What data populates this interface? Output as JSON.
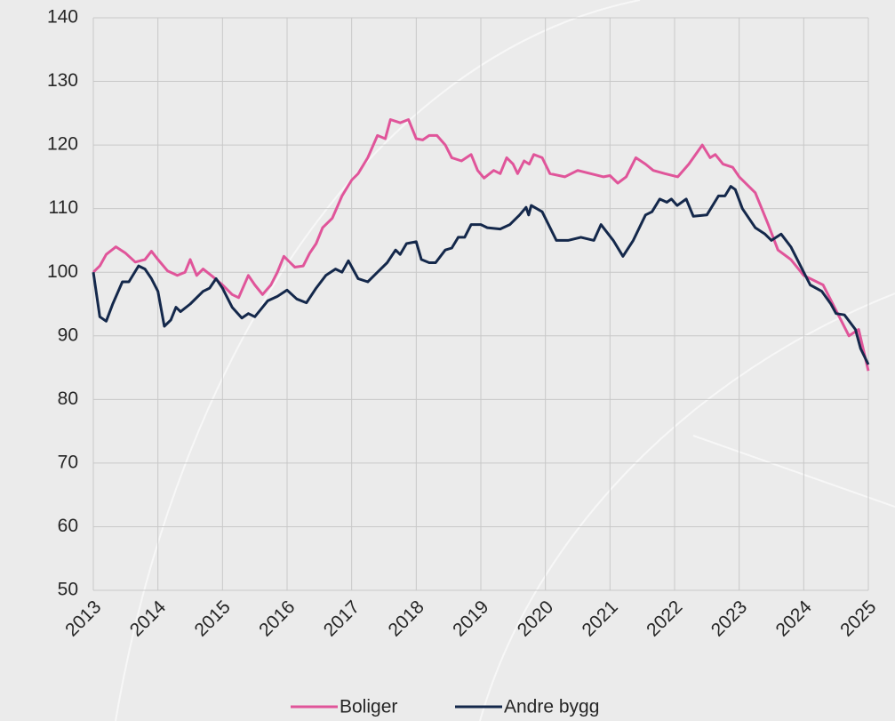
{
  "chart_data": {
    "type": "line",
    "xlim": [
      2013,
      2025
    ],
    "xticks": [
      2013,
      2014,
      2015,
      2016,
      2017,
      2018,
      2019,
      2020,
      2021,
      2022,
      2023,
      2024,
      2025
    ],
    "ylim": [
      50,
      140
    ],
    "yticks": [
      50,
      60,
      70,
      80,
      90,
      100,
      110,
      120,
      130,
      140
    ],
    "grid": true,
    "legend": "bottom",
    "series": [
      {
        "name": "Boliger",
        "color": "#e0559a",
        "x": [
          2013,
          2013.1,
          2013.2,
          2013.35,
          2013.5,
          2013.65,
          2013.8,
          2013.9,
          2014,
          2014.15,
          2014.3,
          2014.42,
          2014.5,
          2014.6,
          2014.7,
          2014.85,
          2015,
          2015.15,
          2015.25,
          2015.4,
          2015.5,
          2015.62,
          2015.75,
          2015.85,
          2015.95,
          2016.05,
          2016.12,
          2016.25,
          2016.35,
          2016.45,
          2016.55,
          2016.7,
          2016.85,
          2017,
          2017.1,
          2017.25,
          2017.4,
          2017.52,
          2017.6,
          2017.75,
          2017.88,
          2018,
          2018.1,
          2018.2,
          2018.32,
          2018.45,
          2018.55,
          2018.7,
          2018.85,
          2018.95,
          2019.05,
          2019.2,
          2019.3,
          2019.4,
          2019.5,
          2019.57,
          2019.67,
          2019.75,
          2019.82,
          2019.95,
          2020.07,
          2020.3,
          2020.5,
          2020.7,
          2020.9,
          2021,
          2021.12,
          2021.25,
          2021.4,
          2021.55,
          2021.67,
          2021.85,
          2022.05,
          2022.22,
          2022.43,
          2022.55,
          2022.63,
          2022.75,
          2022.9,
          2023,
          2023.25,
          2023.45,
          2023.6,
          2023.8,
          2024,
          2024.3,
          2024.5,
          2024.7,
          2024.85,
          2025
        ],
        "values": [
          100,
          101,
          102.8,
          104,
          103,
          101.6,
          102,
          103.3,
          102,
          100.2,
          99.5,
          100,
          102,
          99.5,
          100.5,
          99.3,
          98,
          96.5,
          96,
          99.5,
          98,
          96.5,
          98,
          100,
          102.5,
          101.5,
          100.8,
          101,
          103,
          104.5,
          107,
          108.5,
          112,
          114.5,
          115.5,
          118,
          121.5,
          121,
          124,
          123.5,
          124,
          121,
          120.8,
          121.5,
          121.5,
          120,
          118,
          117.5,
          118.5,
          116,
          114.8,
          116,
          115.5,
          118,
          117,
          115.5,
          117.5,
          117,
          118.5,
          118,
          115.5,
          115,
          116,
          115.5,
          115,
          115.2,
          114,
          115,
          118,
          117,
          116,
          115.5,
          115,
          117,
          120,
          118,
          118.5,
          117,
          116.5,
          115,
          112.5,
          107.5,
          103.5,
          102,
          99.5,
          98,
          94,
          90,
          91,
          84.5
        ]
      },
      {
        "name": "Andre bygg",
        "color": "#14284b",
        "x": [
          2013,
          2013.1,
          2013.2,
          2013.3,
          2013.45,
          2013.55,
          2013.7,
          2013.8,
          2013.9,
          2014,
          2014.1,
          2014.2,
          2014.28,
          2014.35,
          2014.5,
          2014.7,
          2014.8,
          2014.9,
          2015,
          2015.15,
          2015.3,
          2015.4,
          2015.5,
          2015.7,
          2015.85,
          2016,
          2016.15,
          2016.3,
          2016.45,
          2016.6,
          2016.75,
          2016.85,
          2016.95,
          2017.1,
          2017.25,
          2017.4,
          2017.55,
          2017.68,
          2017.75,
          2017.85,
          2018,
          2018.08,
          2018.2,
          2018.3,
          2018.45,
          2018.55,
          2018.65,
          2018.75,
          2018.85,
          2019,
          2019.1,
          2019.3,
          2019.45,
          2019.6,
          2019.7,
          2019.74,
          2019.78,
          2019.95,
          2020.17,
          2020.35,
          2020.55,
          2020.75,
          2020.86,
          2021.05,
          2021.2,
          2021.36,
          2021.55,
          2021.65,
          2021.77,
          2021.88,
          2021.95,
          2022.04,
          2022.18,
          2022.29,
          2022.5,
          2022.68,
          2022.78,
          2022.87,
          2022.94,
          2023.05,
          2023.25,
          2023.4,
          2023.5,
          2023.65,
          2023.8,
          2023.95,
          2024.1,
          2024.28,
          2024.42,
          2024.5,
          2024.63,
          2024.8,
          2024.88,
          2025
        ],
        "values": [
          100,
          93,
          92.3,
          95,
          98.5,
          98.5,
          101,
          100.5,
          99,
          97,
          91.5,
          92.5,
          94.5,
          93.8,
          95,
          97,
          97.5,
          99,
          97.5,
          94.5,
          92.8,
          93.5,
          93,
          95.5,
          96.2,
          97.2,
          95.8,
          95.2,
          97.5,
          99.5,
          100.5,
          100,
          101.8,
          99,
          98.5,
          100,
          101.5,
          103.5,
          102.8,
          104.5,
          104.8,
          102,
          101.5,
          101.5,
          103.5,
          103.8,
          105.5,
          105.5,
          107.5,
          107.5,
          107,
          106.8,
          107.5,
          109,
          110.2,
          109,
          110.5,
          109.5,
          105,
          105,
          105.5,
          105,
          107.5,
          105,
          102.5,
          105,
          109,
          109.5,
          111.5,
          111,
          111.5,
          110.5,
          111.5,
          108.8,
          109,
          112,
          112,
          113.5,
          113,
          110,
          107,
          106,
          105,
          106,
          104,
          101,
          98,
          97,
          95,
          93.5,
          93.3,
          91,
          88,
          85.5
        ]
      }
    ]
  }
}
